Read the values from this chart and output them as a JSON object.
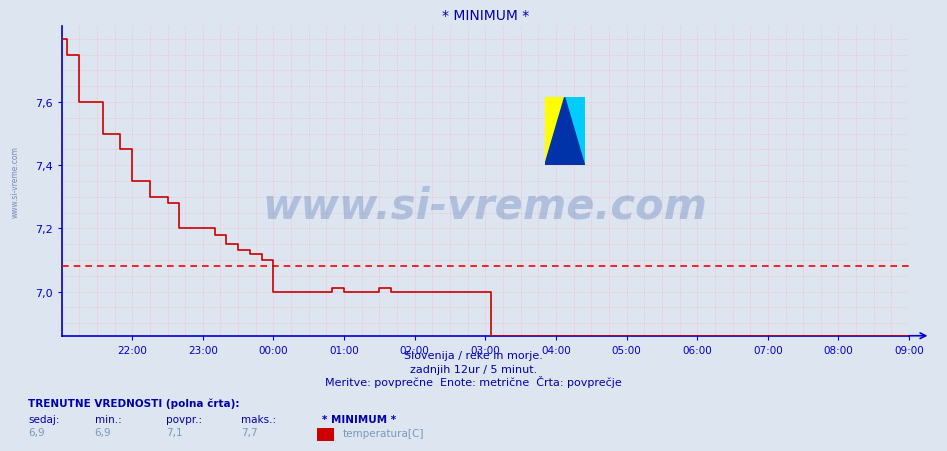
{
  "title": "* MINIMUM *",
  "bg_color": "#dde5f0",
  "plot_bg_color": "#dde5f0",
  "line_color": "#cc0000",
  "avg_line_color": "#ff0000",
  "avg_value": 7.08,
  "yticks": [
    7.0,
    7.2,
    7.4,
    7.6
  ],
  "ymin": 6.86,
  "ymax": 7.84,
  "x_start_hour": 21,
  "x_hours": 12,
  "xtick_hours": [
    22,
    23,
    0,
    1,
    2,
    3,
    4,
    5,
    6,
    7,
    8,
    9
  ],
  "xtick_labels": [
    "22:00",
    "23:00",
    "00:00",
    "01:00",
    "02:00",
    "03:00",
    "04:00",
    "05:00",
    "06:00",
    "07:00",
    "08:00",
    "09:00"
  ],
  "minor_grid_color": "#ffb0b0",
  "axis_color": "#0000cc",
  "text_color": "#0000aa",
  "watermark_text": "www.si-vreme.com",
  "watermark_color": "#2255aa",
  "xlabel_lines": [
    "Slovenija / reke in morje.",
    "zadnjih 12ur / 5 minut.",
    "Meritve: povprečne  Enote: metrične  Črta: povprečje"
  ],
  "footer_bold": "TRENUTNE VREDNOSTI (polna črta):",
  "footer_labels": [
    "sedaj:",
    "min.:",
    "povpr.:",
    "maks.:",
    "* MINIMUM *"
  ],
  "footer_values": [
    "6,9",
    "6,9",
    "7,1",
    "7,7"
  ],
  "legend_label": "temperatura[C]",
  "legend_color": "#cc0000",
  "data_x": [
    0,
    0.083,
    0.25,
    0.5,
    0.583,
    0.833,
    1.0,
    1.25,
    1.417,
    1.5,
    1.667,
    2.0,
    2.083,
    2.167,
    2.333,
    2.5,
    2.667,
    2.833,
    3.0,
    3.167,
    3.333,
    3.5,
    3.667,
    3.833,
    4.0,
    4.167,
    4.333,
    4.5,
    4.667,
    4.833,
    5.0,
    5.083,
    5.167,
    5.25,
    5.5,
    6.0,
    6.083,
    7.0,
    8.0,
    9.0,
    10.0,
    11.0,
    12.0
  ],
  "data_y": [
    7.8,
    7.75,
    7.6,
    7.6,
    7.5,
    7.45,
    7.35,
    7.3,
    7.3,
    7.28,
    7.2,
    7.2,
    7.2,
    7.18,
    7.15,
    7.13,
    7.12,
    7.1,
    7.0,
    7.0,
    7.0,
    7.0,
    7.0,
    7.01,
    7.0,
    7.0,
    7.0,
    7.01,
    7.0,
    7.0,
    7.0,
    7.0,
    7.0,
    7.0,
    7.0,
    7.0,
    6.86,
    6.86,
    6.86,
    6.86,
    6.86,
    6.86,
    6.86
  ]
}
